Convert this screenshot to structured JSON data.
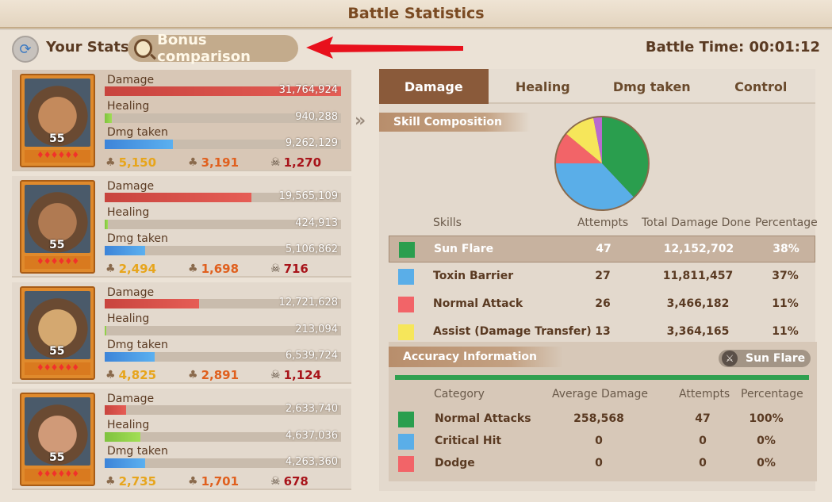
{
  "header": {
    "title": "Battle Statistics"
  },
  "toolbar": {
    "your_stats": "Your Stats",
    "bonus_comparison": "Bonus comparison",
    "battle_time": "Battle Time: 00:01:12"
  },
  "heroes": [
    {
      "level": "55",
      "stars": "♦♦♦♦♦♦",
      "damage_label": "Damage",
      "damage": "31,764,924",
      "damage_fill": 1.0,
      "healing_label": "Healing",
      "healing": "940,288",
      "healing_fill": 0.03,
      "taken_label": "Dmg taken",
      "taken": "9,262,129",
      "taken_fill": 0.29,
      "kills": "5,150",
      "assists": "3,191",
      "deaths": "1,270"
    },
    {
      "level": "55",
      "stars": "♦♦♦♦♦♦",
      "damage_label": "Damage",
      "damage": "19,565,109",
      "damage_fill": 0.62,
      "healing_label": "Healing",
      "healing": "424,913",
      "healing_fill": 0.015,
      "taken_label": "Dmg taken",
      "taken": "5,106,862",
      "taken_fill": 0.17,
      "kills": "2,494",
      "assists": "1,698",
      "deaths": "716"
    },
    {
      "level": "55",
      "stars": "♦♦♦♦♦♦",
      "damage_label": "Damage",
      "damage": "12,721,628",
      "damage_fill": 0.4,
      "healing_label": "Healing",
      "healing": "213,094",
      "healing_fill": 0.008,
      "taken_label": "Dmg taken",
      "taken": "6,539,724",
      "taken_fill": 0.21,
      "kills": "4,825",
      "assists": "2,891",
      "deaths": "1,124"
    },
    {
      "level": "55",
      "stars": "♦♦♦♦♦♦",
      "damage_label": "Damage",
      "damage": "2,633,740",
      "damage_fill": 0.09,
      "healing_label": "Healing",
      "healing": "4,637,036",
      "healing_fill": 0.15,
      "taken_label": "Dmg taken",
      "taken": "4,263,360",
      "taken_fill": 0.17,
      "kills": "2,735",
      "assists": "1,701",
      "deaths": "678"
    }
  ],
  "tabs": [
    "Damage",
    "Healing",
    "Dmg taken",
    "Control"
  ],
  "skill_composition": {
    "title": "Skill Composition",
    "headers": {
      "skills": "Skills",
      "attempts": "Attempts",
      "total": "Total Damage Done",
      "percentage": "Percentage"
    },
    "rows": [
      {
        "name": "Sun Flare",
        "attempts": "47",
        "total": "12,152,702",
        "percentage": "38%",
        "color": "#2a9e4e"
      },
      {
        "name": "Toxin Barrier",
        "attempts": "27",
        "total": "11,811,457",
        "percentage": "37%",
        "color": "#5aaee8"
      },
      {
        "name": "Normal Attack",
        "attempts": "26",
        "total": "3,466,182",
        "percentage": "11%",
        "color": "#f26468"
      },
      {
        "name": "Assist (Damage Transfer)",
        "attempts": "13",
        "total": "3,364,165",
        "percentage": "11%",
        "color": "#f6e65a"
      }
    ]
  },
  "pie_data": {
    "type": "pie",
    "values": [
      38,
      37,
      11,
      11,
      3
    ],
    "colors": [
      "#2a9e4e",
      "#5aaee8",
      "#f26468",
      "#f6e65a",
      "#b86ad0"
    ]
  },
  "accuracy": {
    "title": "Accuracy Information",
    "selected_skill": "Sun Flare",
    "headers": {
      "category": "Category",
      "avg": "Average Damage",
      "attempts": "Attempts",
      "percentage": "Percentage"
    },
    "rows": [
      {
        "name": "Normal Attacks",
        "avg": "258,568",
        "attempts": "47",
        "percentage": "100%",
        "color": "#2a9e4e"
      },
      {
        "name": "Critical Hit",
        "avg": "0",
        "attempts": "0",
        "percentage": "0%",
        "color": "#5aaee8"
      },
      {
        "name": "Dodge",
        "avg": "0",
        "attempts": "0",
        "percentage": "0%",
        "color": "#f26468"
      }
    ]
  }
}
